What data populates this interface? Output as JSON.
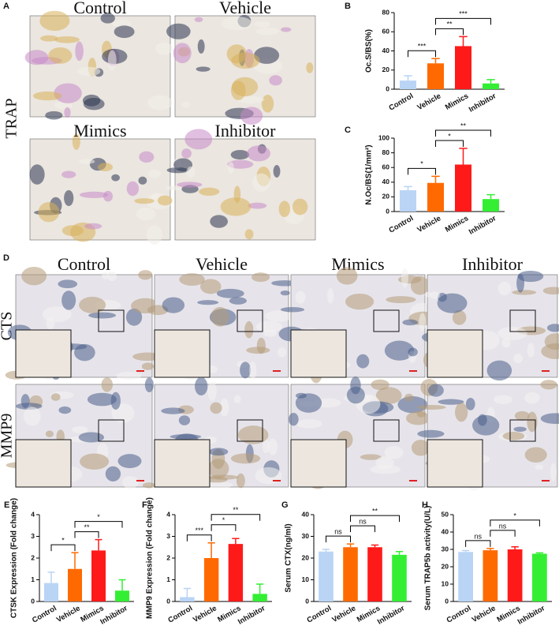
{
  "figure": {
    "panel_a": {
      "label": "A",
      "row_label": "TRAP",
      "titles": [
        "Control",
        "Vehicle",
        "Mimics",
        "Inhibitor"
      ]
    },
    "panel_d": {
      "label": "D",
      "titles": [
        "Control",
        "Vehicle",
        "Mimics",
        "Inhibitor"
      ],
      "row_labels": [
        "CTS",
        "MMP9"
      ]
    }
  },
  "chart_data": [
    {
      "type": "bar",
      "panel": "B",
      "y_label": "Oc.S/BS(%)",
      "categories": [
        "Control",
        "Vehicle",
        "Mimics",
        "Inhibitor"
      ],
      "values": [
        9,
        27,
        45,
        6
      ],
      "errors": [
        5,
        5,
        10,
        4
      ],
      "colors": [
        "#b9d4f5",
        "#ff6a00",
        "#ff1a1a",
        "#33ee33"
      ],
      "ylim": [
        0,
        80
      ],
      "yticks": [
        0,
        20,
        40,
        60,
        80
      ],
      "brackets": [
        {
          "between": [
            "Control",
            "Vehicle"
          ],
          "label": "***"
        },
        {
          "between": [
            "Vehicle",
            "Mimics"
          ],
          "label": "**"
        },
        {
          "between": [
            "Vehicle",
            "Inhibitor"
          ],
          "label": "***"
        }
      ]
    },
    {
      "type": "bar",
      "panel": "C",
      "y_label": "N.Oc/BS(1/mm²)",
      "categories": [
        "Control",
        "Vehicle",
        "Mimics",
        "Inhibitor"
      ],
      "values": [
        29,
        39,
        64,
        17
      ],
      "errors": [
        5,
        9,
        22,
        6
      ],
      "colors": [
        "#b9d4f5",
        "#ff6a00",
        "#ff1a1a",
        "#33ee33"
      ],
      "ylim": [
        0,
        100
      ],
      "yticks": [
        0,
        20,
        40,
        60,
        80,
        100
      ],
      "brackets": [
        {
          "between": [
            "Control",
            "Vehicle"
          ],
          "label": "*"
        },
        {
          "between": [
            "Vehicle",
            "Mimics"
          ],
          "label": "*"
        },
        {
          "between": [
            "Vehicle",
            "Inhibitor"
          ],
          "label": "**"
        }
      ]
    },
    {
      "type": "bar",
      "panel": "E",
      "y_label": "CTSK Expression (Fold change)",
      "categories": [
        "Control",
        "Vehicle",
        "Mimics",
        "Inhibitor"
      ],
      "values": [
        0.85,
        1.5,
        2.35,
        0.5
      ],
      "errors": [
        0.5,
        0.75,
        0.5,
        0.5
      ],
      "colors": [
        "#b9d4f5",
        "#ff6a00",
        "#ff1a1a",
        "#33ee33"
      ],
      "ylim": [
        0,
        4
      ],
      "yticks": [
        0,
        1,
        2,
        3,
        4
      ],
      "brackets": [
        {
          "between": [
            "Control",
            "Vehicle"
          ],
          "label": "*"
        },
        {
          "between": [
            "Vehicle",
            "Mimics"
          ],
          "label": "**"
        },
        {
          "between": [
            "Vehicle",
            "Inhibitor"
          ],
          "label": "*"
        }
      ]
    },
    {
      "type": "bar",
      "panel": "F",
      "y_label": "MMP9 Expression (Fold change)",
      "categories": [
        "Control",
        "Vehicle",
        "Mimics",
        "Inhibitor"
      ],
      "values": [
        0.2,
        2.0,
        2.65,
        0.35
      ],
      "errors": [
        0.4,
        0.7,
        0.25,
        0.45
      ],
      "colors": [
        "#b9d4f5",
        "#ff6a00",
        "#ff1a1a",
        "#33ee33"
      ],
      "ylim": [
        0,
        4
      ],
      "yticks": [
        0,
        1,
        2,
        3,
        4
      ],
      "brackets": [
        {
          "between": [
            "Control",
            "Vehicle"
          ],
          "label": "***"
        },
        {
          "between": [
            "Vehicle",
            "Mimics"
          ],
          "label": "*"
        },
        {
          "between": [
            "Vehicle",
            "Inhibitor"
          ],
          "label": "**"
        }
      ]
    },
    {
      "type": "bar",
      "panel": "G",
      "y_label": "Serum CTX(ng/ml)",
      "categories": [
        "Control",
        "Vehicle",
        "Mimics",
        "Inhibitor"
      ],
      "values": [
        23,
        25,
        25,
        21.5
      ],
      "errors": [
        1,
        1.5,
        1,
        1.5
      ],
      "colors": [
        "#b9d4f5",
        "#ff6a00",
        "#ff1a1a",
        "#33ee33"
      ],
      "ylim": [
        0,
        40
      ],
      "yticks": [
        0,
        10,
        20,
        30,
        40
      ],
      "brackets": [
        {
          "between": [
            "Control",
            "Vehicle"
          ],
          "label": "ns"
        },
        {
          "between": [
            "Vehicle",
            "Mimics"
          ],
          "label": "ns"
        },
        {
          "between": [
            "Vehicle",
            "Inhibitor"
          ],
          "label": "**"
        }
      ]
    },
    {
      "type": "bar",
      "panel": "H",
      "y_label": "Serum TRAP5b activity(U/L)",
      "categories": [
        "Control",
        "Vehicle",
        "Mimics",
        "Inhibitor"
      ],
      "values": [
        28.5,
        29.5,
        30,
        27.5
      ],
      "errors": [
        0.8,
        1,
        1.5,
        0.5
      ],
      "colors": [
        "#b9d4f5",
        "#ff6a00",
        "#ff1a1a",
        "#33ee33"
      ],
      "ylim": [
        0,
        50
      ],
      "yticks": [
        0,
        10,
        20,
        30,
        40,
        50
      ],
      "brackets": [
        {
          "between": [
            "Control",
            "Vehicle"
          ],
          "label": "ns"
        },
        {
          "between": [
            "Vehicle",
            "Mimics"
          ],
          "label": "ns"
        },
        {
          "between": [
            "Vehicle",
            "Inhibitor"
          ],
          "label": "*"
        }
      ]
    }
  ]
}
